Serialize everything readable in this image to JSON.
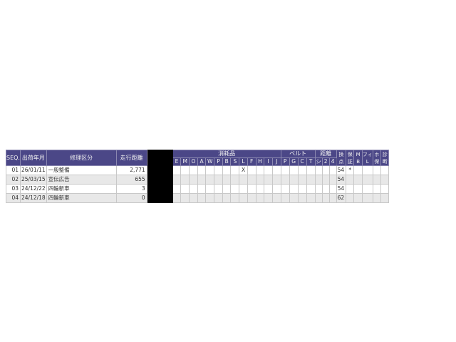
{
  "page": {
    "background": "#ffffff"
  },
  "table": {
    "colors": {
      "header_bg": "#4b4787",
      "header_text": "#f2f2f2",
      "row_alt_bg": "#e8e8e8",
      "redacted": "#000000",
      "grid": "#c8c8c8",
      "group_divider": "#5e5b8a",
      "text": "#333333"
    },
    "header": {
      "seq": "SEQ.",
      "ship_date": "出荷年月",
      "repair_category": "修理区分",
      "mileage": "走行距離",
      "redacted": "",
      "groups": [
        {
          "id": "consumables",
          "label": "消耗品",
          "cols": [
            "E",
            "M",
            "O",
            "A",
            "W",
            "P",
            "B",
            "S",
            "L",
            "F",
            "H",
            "I",
            "J"
          ]
        },
        {
          "id": "belt",
          "label": "ベルト",
          "cols": [
            "P",
            "G",
            "C",
            "T"
          ]
        },
        {
          "id": "distance",
          "label": "距離",
          "cols": [
            "シ",
            "2",
            "4"
          ]
        }
      ],
      "stacked": [
        {
          "id": "points",
          "lines": [
            "換",
            "点"
          ]
        },
        {
          "id": "warranty",
          "lines": [
            "保",
            "証"
          ]
        },
        {
          "id": "mb",
          "lines": [
            "M",
            "B"
          ]
        },
        {
          "id": "fil",
          "lines": [
            "フィ",
            "L"
          ]
        },
        {
          "id": "ho",
          "lines": [
            "ホ",
            "保"
          ]
        },
        {
          "id": "diagnosis",
          "lines": [
            "診",
            "断"
          ]
        }
      ]
    },
    "rows": [
      {
        "seq": "01",
        "ship_date": "26/01/11",
        "repair_category": "一般整備",
        "mileage": "2,771",
        "consumables": [
          "",
          "",
          "",
          "",
          "",
          "",
          "",
          "",
          "X",
          "",
          "",
          "",
          ""
        ],
        "belt": [
          "",
          "",
          "",
          ""
        ],
        "distance": [
          "",
          "",
          ""
        ],
        "points": "54",
        "warranty": "*",
        "mb": "",
        "fil": "",
        "ho": "",
        "diag": ""
      },
      {
        "seq": "02",
        "ship_date": "25/03/15",
        "repair_category": "宣伝広告",
        "mileage": "655",
        "consumables": [
          "",
          "",
          "",
          "",
          "",
          "",
          "",
          "",
          "",
          "",
          "",
          "",
          ""
        ],
        "belt": [
          "",
          "",
          "",
          ""
        ],
        "distance": [
          "",
          "",
          ""
        ],
        "points": "54",
        "warranty": "",
        "mb": "",
        "fil": "",
        "ho": "",
        "diag": ""
      },
      {
        "seq": "03",
        "ship_date": "24/12/22",
        "repair_category": "四輪新車",
        "mileage": "3",
        "consumables": [
          "",
          "",
          "",
          "",
          "",
          "",
          "",
          "",
          "",
          "",
          "",
          "",
          ""
        ],
        "belt": [
          "",
          "",
          "",
          ""
        ],
        "distance": [
          "",
          "",
          ""
        ],
        "points": "54",
        "warranty": "",
        "mb": "",
        "fil": "",
        "ho": "",
        "diag": ""
      },
      {
        "seq": "04",
        "ship_date": "24/12/18",
        "repair_category": "四輪新車",
        "mileage": "0",
        "consumables": [
          "",
          "",
          "",
          "",
          "",
          "",
          "",
          "",
          "",
          "",
          "",
          "",
          ""
        ],
        "belt": [
          "",
          "",
          "",
          ""
        ],
        "distance": [
          "",
          "",
          ""
        ],
        "points": "62",
        "warranty": "",
        "mb": "",
        "fil": "",
        "ho": "",
        "diag": ""
      }
    ]
  }
}
